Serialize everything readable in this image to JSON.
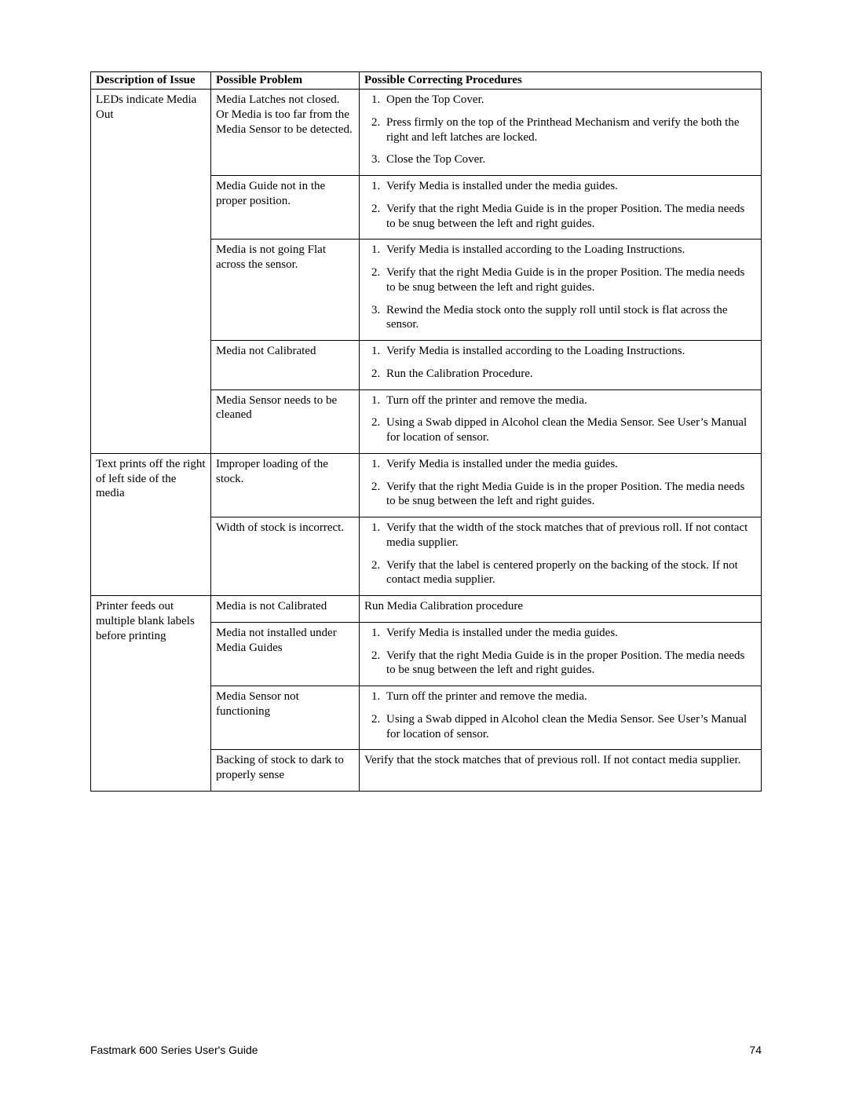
{
  "headers": {
    "col1": "Description of Issue",
    "col2": "Possible Problem",
    "col3": "Possible Correcting Procedures"
  },
  "footer": {
    "title": "Fastmark 600 Series User's Guide",
    "page": "74"
  },
  "rows": [
    {
      "desc": "LEDs indicate Media Out",
      "problems": [
        {
          "problem": "Media Latches not closed. Or Media is too far from the Media Sensor to be detected.",
          "procedures": [
            "Open the Top Cover.",
            "Press firmly on the top of the Printhead Mechanism and verify the both the right and left latches are locked.",
            "Close the Top Cover."
          ]
        },
        {
          "problem": "Media Guide not in the proper position.",
          "procedures": [
            "Verify Media is installed under the media guides.",
            "Verify that the right Media Guide is in the proper Position. The media needs to be snug between the left and right guides."
          ]
        },
        {
          "problem": "Media is not going Flat across the sensor.",
          "procedures": [
            "Verify Media is installed according to the Loading Instructions.",
            "Verify that the right Media Guide is in the proper Position. The media needs to be snug between the left and right guides.",
            "Rewind the Media stock onto the supply roll until stock is flat across the sensor."
          ]
        },
        {
          "problem": "Media not Calibrated",
          "procedures": [
            "Verify Media is installed according to the Loading Instructions.",
            "Run the Calibration Procedure."
          ]
        },
        {
          "problem": "Media Sensor needs to be cleaned",
          "procedures": [
            "Turn off the printer and remove the media.",
            "Using a Swab dipped in Alcohol clean the Media Sensor.  See User’s Manual for location of sensor."
          ]
        }
      ]
    },
    {
      "desc": "Text prints off the right of left side of the media",
      "problems": [
        {
          "problem": "Improper loading of the stock.",
          "procedures": [
            "Verify Media is installed under the media guides.",
            "Verify that the right Media Guide is in the proper Position. The media needs to be snug between the left and right guides."
          ]
        },
        {
          "problem": "Width of stock is incorrect.",
          "procedures": [
            "Verify that the width of the stock matches that of previous roll.  If not contact media supplier.",
            "Verify that the label is centered properly on the backing of the stock.   If not contact media supplier."
          ]
        }
      ]
    },
    {
      "desc": "Printer feeds out multiple blank labels before printing",
      "problems": [
        {
          "problem": "Media is not Calibrated",
          "plain": "Run Media Calibration procedure"
        },
        {
          "problem": "Media not installed under Media Guides",
          "procedures": [
            "Verify Media is installed under the media guides.",
            "Verify that the right Media Guide is in the proper Position. The media needs to be snug between the left and right guides."
          ]
        },
        {
          "problem": "Media Sensor not functioning",
          "procedures": [
            "Turn off the printer and remove the media.",
            "Using a Swab dipped in Alcohol clean the Media Sensor.  See User’s Manual for location of sensor."
          ]
        },
        {
          "problem": "Backing of stock to dark to properly sense",
          "plain": "Verify that the stock matches that of previous roll.  If not contact media supplier."
        }
      ]
    }
  ]
}
